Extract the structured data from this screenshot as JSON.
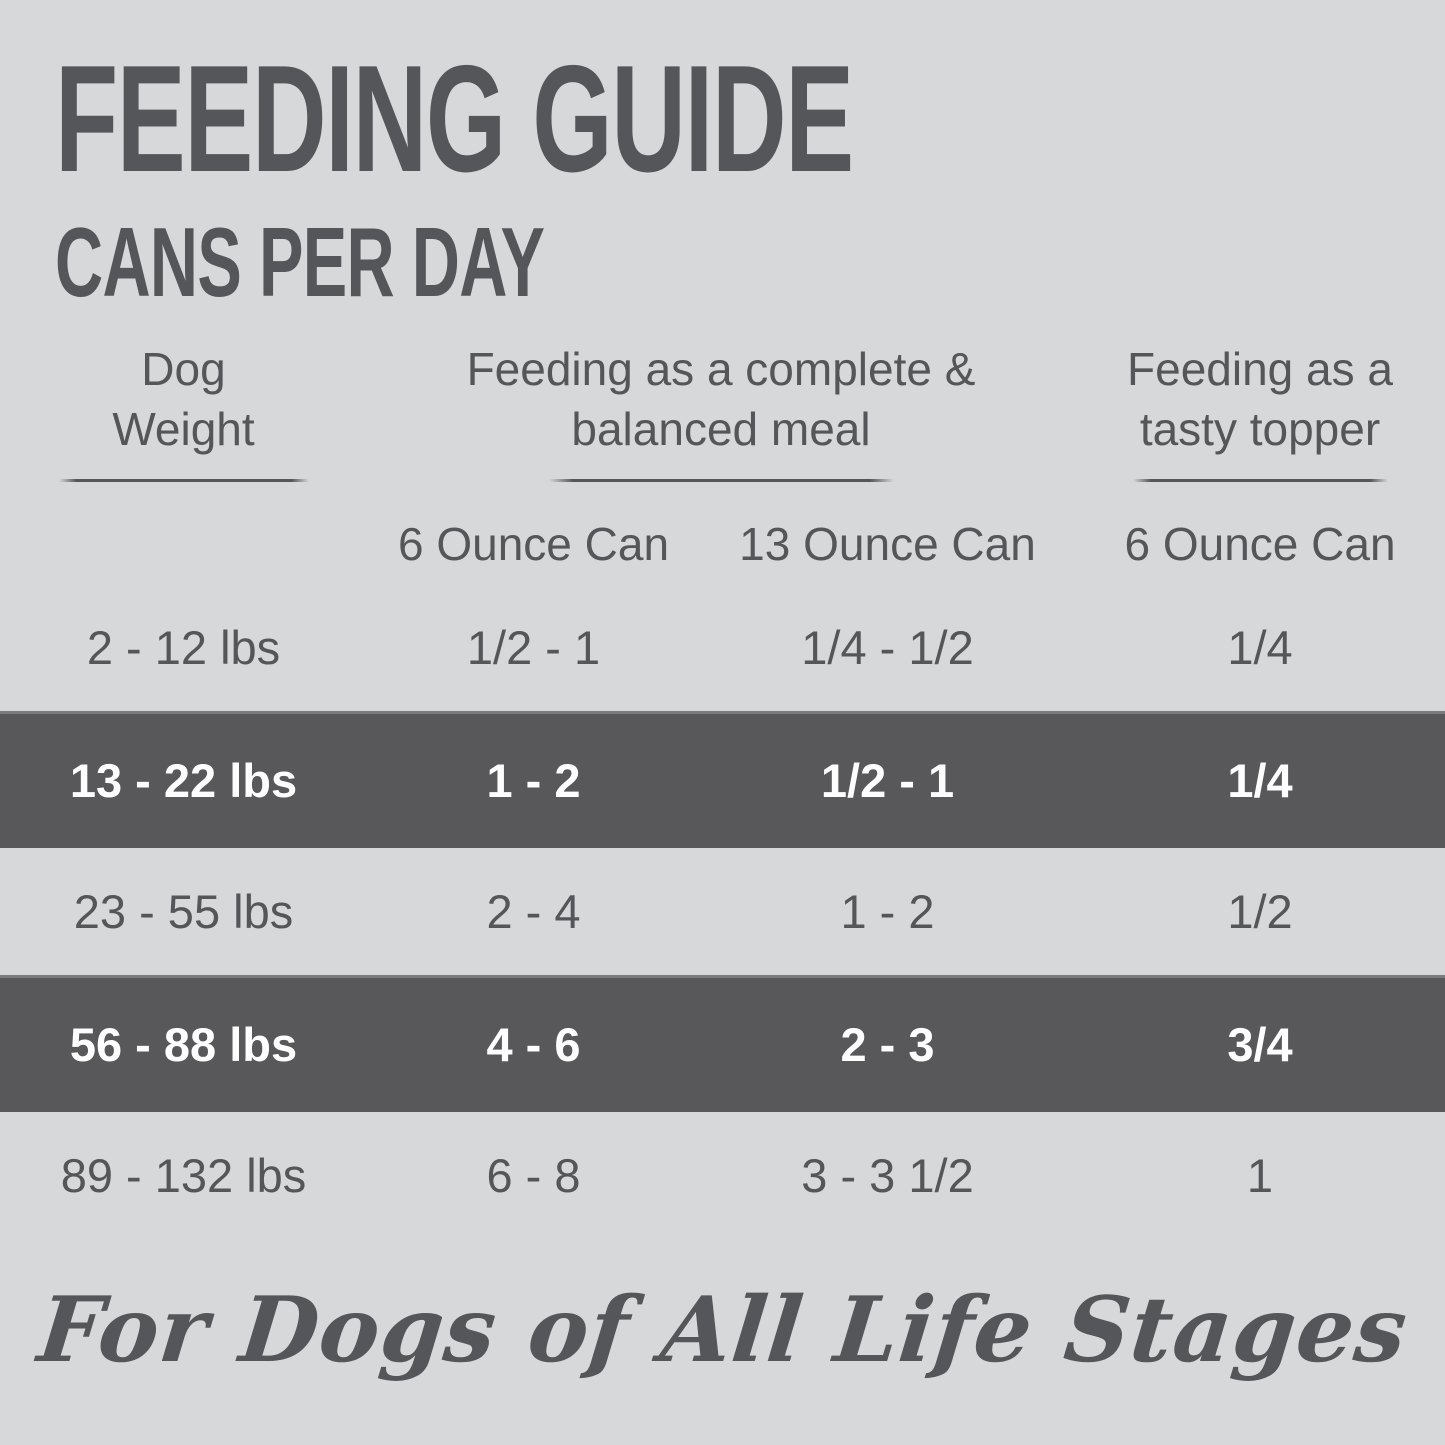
{
  "header": {
    "title": "FEEDING GUIDE",
    "subtitle": "CANS PER DAY"
  },
  "table": {
    "group_headers": {
      "weight": {
        "line1": "Dog",
        "line2": "Weight"
      },
      "meal": {
        "line1": "Feeding as a complete &",
        "line2": "balanced meal"
      },
      "topper": {
        "line1": "Feeding as a",
        "line2": "tasty topper"
      }
    },
    "subheaders": [
      "6 Ounce Can",
      "13 Ounce Can",
      "6 Ounce Can"
    ],
    "rows": [
      {
        "weight": "2 - 12 lbs",
        "can6": "1/2 - 1",
        "can13": "1/4 - 1/2",
        "topper": "1/4",
        "highlighted": false
      },
      {
        "weight": "13 - 22 lbs",
        "can6": "1 - 2",
        "can13": "1/2 - 1",
        "topper": "1/4",
        "highlighted": true
      },
      {
        "weight": "23 - 55 lbs",
        "can6": "2 - 4",
        "can13": "1 - 2",
        "topper": "1/2",
        "highlighted": false
      },
      {
        "weight": "56 - 88 lbs",
        "can6": "4 - 6",
        "can13": "2 - 3",
        "topper": "3/4",
        "highlighted": true
      },
      {
        "weight": "89 - 132 lbs",
        "can6": "6 - 8",
        "can13": "3 - 3 1/2",
        "topper": "1",
        "highlighted": false
      }
    ]
  },
  "footer": {
    "tagline": "For Dogs of All Life Stages"
  },
  "colors": {
    "background": "#d7d8da",
    "text": "#55565a",
    "band": "#58585a",
    "band_text": "#fdfdfd"
  }
}
